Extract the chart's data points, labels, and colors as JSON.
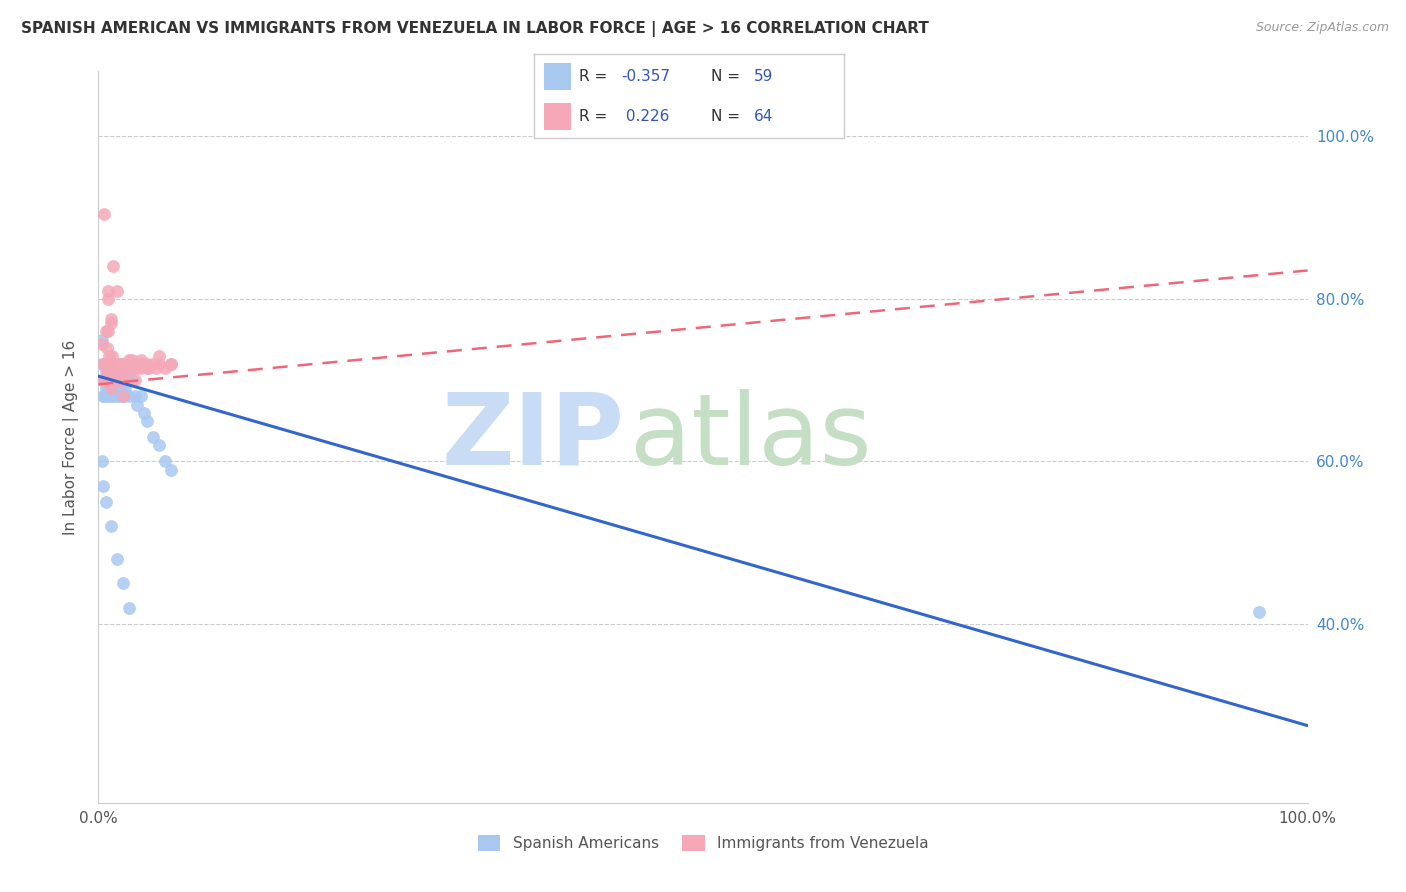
{
  "title": "SPANISH AMERICAN VS IMMIGRANTS FROM VENEZUELA IN LABOR FORCE | AGE > 16 CORRELATION CHART",
  "source": "Source: ZipAtlas.com",
  "ylabel": "In Labor Force | Age > 16",
  "blue_R": -0.357,
  "blue_N": 59,
  "pink_R": 0.226,
  "pink_N": 64,
  "blue_color": "#a8c8f0",
  "pink_color": "#f4a8b8",
  "blue_line_color": "#3366cc",
  "pink_line_color": "#ee6677",
  "xmin": 0.0,
  "xmax": 1.0,
  "ymin": 0.18,
  "ymax": 1.08,
  "yticks": [
    0.4,
    0.6,
    0.8,
    1.0
  ],
  "ytick_right_labels": [
    "40.0%",
    "60.0%",
    "80.0%",
    "100.0%"
  ],
  "xtick_vals": [
    0.0,
    0.2,
    0.4,
    0.6,
    0.8,
    1.0
  ],
  "xtick_labels": [
    "0.0%",
    "",
    "",
    "",
    "",
    "100.0%"
  ],
  "blue_scatter_x": [
    0.003,
    0.003,
    0.004,
    0.004,
    0.005,
    0.005,
    0.005,
    0.006,
    0.006,
    0.007,
    0.007,
    0.007,
    0.008,
    0.008,
    0.009,
    0.009,
    0.009,
    0.01,
    0.01,
    0.01,
    0.011,
    0.011,
    0.012,
    0.012,
    0.013,
    0.013,
    0.014,
    0.015,
    0.015,
    0.016,
    0.016,
    0.017,
    0.018,
    0.018,
    0.019,
    0.02,
    0.021,
    0.022,
    0.023,
    0.025,
    0.025,
    0.028,
    0.03,
    0.032,
    0.035,
    0.038,
    0.04,
    0.045,
    0.05,
    0.055,
    0.06,
    0.003,
    0.004,
    0.006,
    0.01,
    0.015,
    0.02,
    0.025,
    0.96
  ],
  "blue_scatter_y": [
    0.75,
    0.72,
    0.7,
    0.68,
    0.72,
    0.7,
    0.68,
    0.71,
    0.69,
    0.72,
    0.7,
    0.68,
    0.71,
    0.69,
    0.72,
    0.7,
    0.68,
    0.72,
    0.7,
    0.68,
    0.71,
    0.69,
    0.7,
    0.68,
    0.71,
    0.69,
    0.7,
    0.71,
    0.68,
    0.7,
    0.69,
    0.71,
    0.7,
    0.68,
    0.69,
    0.7,
    0.68,
    0.69,
    0.7,
    0.71,
    0.68,
    0.7,
    0.68,
    0.67,
    0.68,
    0.66,
    0.65,
    0.63,
    0.62,
    0.6,
    0.59,
    0.6,
    0.57,
    0.55,
    0.52,
    0.48,
    0.45,
    0.42,
    0.415
  ],
  "pink_scatter_x": [
    0.003,
    0.004,
    0.004,
    0.005,
    0.005,
    0.005,
    0.006,
    0.006,
    0.007,
    0.007,
    0.008,
    0.008,
    0.008,
    0.009,
    0.009,
    0.01,
    0.01,
    0.01,
    0.011,
    0.011,
    0.012,
    0.012,
    0.013,
    0.013,
    0.014,
    0.014,
    0.015,
    0.015,
    0.016,
    0.016,
    0.017,
    0.018,
    0.018,
    0.02,
    0.02,
    0.022,
    0.025,
    0.025,
    0.028,
    0.03,
    0.03,
    0.032,
    0.035,
    0.035,
    0.038,
    0.04,
    0.042,
    0.045,
    0.048,
    0.05,
    0.055,
    0.06,
    0.008,
    0.01,
    0.012,
    0.015,
    0.018,
    0.02,
    0.025,
    0.03,
    0.035,
    0.04,
    0.05,
    0.06
  ],
  "pink_scatter_y": [
    0.745,
    0.72,
    0.7,
    0.905,
    0.72,
    0.7,
    0.76,
    0.72,
    0.74,
    0.71,
    0.81,
    0.76,
    0.71,
    0.73,
    0.7,
    0.77,
    0.72,
    0.69,
    0.73,
    0.7,
    0.84,
    0.71,
    0.72,
    0.7,
    0.72,
    0.71,
    0.715,
    0.7,
    0.71,
    0.7,
    0.72,
    0.72,
    0.7,
    0.72,
    0.7,
    0.71,
    0.725,
    0.715,
    0.725,
    0.72,
    0.7,
    0.715,
    0.725,
    0.715,
    0.72,
    0.72,
    0.715,
    0.72,
    0.715,
    0.72,
    0.715,
    0.72,
    0.8,
    0.775,
    0.72,
    0.81,
    0.7,
    0.68,
    0.72,
    0.715,
    0.72,
    0.715,
    0.73,
    0.72
  ],
  "blue_line_x0": 0.0,
  "blue_line_x1": 1.0,
  "blue_line_y0": 0.705,
  "blue_line_y1": 0.275,
  "pink_line_x0": 0.0,
  "pink_line_x1": 1.0,
  "pink_line_y0": 0.695,
  "pink_line_y1": 0.835
}
